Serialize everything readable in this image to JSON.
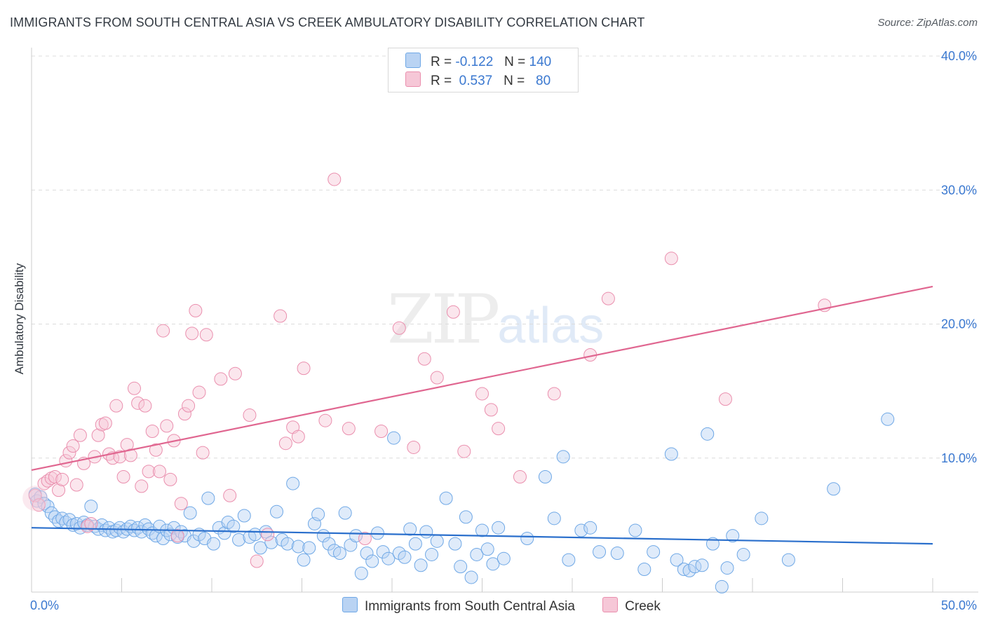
{
  "title": "IMMIGRANTS FROM SOUTH CENTRAL ASIA VS CREEK AMBULATORY DISABILITY CORRELATION CHART",
  "source": "Source: ZipAtlas.com",
  "watermark": {
    "zip": "ZIP",
    "atlas": "atlas"
  },
  "colors": {
    "blue": "#6fa8e6",
    "blue_fill": "#b9d3f3",
    "blue_line": "#2a6fcc",
    "pink": "#ea8fae",
    "pink_fill": "#f6c7d7",
    "pink_line": "#e06690",
    "axis_text": "#3a78d0"
  },
  "legend": {
    "r_label": "R =",
    "n_label": "N =",
    "rows": [
      {
        "r": "-0.122",
        "n": "140",
        "color": "#b9d3f3"
      },
      {
        "r": "0.537",
        "n": "80",
        "color": "#f6c7d7"
      }
    ]
  },
  "bottom_legend": [
    {
      "label": "Immigrants from South Central Asia",
      "color": "#b9d3f3"
    },
    {
      "label": "Creek",
      "color": "#f6c7d7"
    }
  ],
  "chart_data": {
    "type": "scatter",
    "title": "IMMIGRANTS FROM SOUTH CENTRAL ASIA VS CREEK AMBULATORY DISABILITY CORRELATION CHART",
    "xlabel": "",
    "ylabel": "Ambulatory Disability",
    "xlim": [
      0,
      50
    ],
    "ylim": [
      0,
      40
    ],
    "x_tick_labels": [
      "0.0%",
      "50.0%"
    ],
    "y_tick_labels": [
      "10.0%",
      "20.0%",
      "30.0%",
      "40.0%"
    ],
    "y_ticks": [
      10,
      20,
      30,
      40
    ],
    "grid": true,
    "legend_position": "top-center",
    "series": [
      {
        "name": "Immigrants from South Central Asia",
        "trend": {
          "x": [
            0,
            50
          ],
          "y": [
            4.8,
            3.6
          ]
        },
        "points": [
          [
            0.2,
            7.3
          ],
          [
            0.3,
            6.8
          ],
          [
            0.5,
            7.1
          ],
          [
            0.7,
            6.6
          ],
          [
            0.9,
            6.4
          ],
          [
            1.1,
            5.9
          ],
          [
            1.3,
            5.6
          ],
          [
            1.5,
            5.3
          ],
          [
            1.7,
            5.5
          ],
          [
            1.9,
            5.2
          ],
          [
            2.1,
            5.4
          ],
          [
            2.3,
            5.0
          ],
          [
            2.5,
            5.1
          ],
          [
            2.7,
            4.8
          ],
          [
            2.9,
            5.2
          ],
          [
            3.1,
            5.0
          ],
          [
            3.3,
            6.4
          ],
          [
            3.5,
            4.9
          ],
          [
            3.7,
            4.7
          ],
          [
            3.9,
            5.0
          ],
          [
            4.1,
            4.6
          ],
          [
            4.3,
            4.8
          ],
          [
            4.5,
            4.5
          ],
          [
            4.7,
            4.6
          ],
          [
            4.9,
            4.8
          ],
          [
            5.1,
            4.5
          ],
          [
            5.3,
            4.7
          ],
          [
            5.5,
            4.9
          ],
          [
            5.7,
            4.6
          ],
          [
            5.9,
            4.8
          ],
          [
            6.1,
            4.5
          ],
          [
            6.3,
            5.0
          ],
          [
            6.5,
            4.7
          ],
          [
            6.7,
            4.4
          ],
          [
            6.9,
            4.2
          ],
          [
            7.1,
            4.9
          ],
          [
            7.3,
            4.0
          ],
          [
            7.5,
            4.6
          ],
          [
            7.7,
            4.3
          ],
          [
            7.9,
            4.8
          ],
          [
            8.1,
            4.1
          ],
          [
            8.3,
            4.5
          ],
          [
            8.5,
            4.2
          ],
          [
            8.8,
            5.9
          ],
          [
            9.0,
            3.8
          ],
          [
            9.3,
            4.3
          ],
          [
            9.6,
            4.0
          ],
          [
            9.8,
            7.0
          ],
          [
            10.1,
            3.6
          ],
          [
            10.4,
            4.8
          ],
          [
            10.7,
            4.4
          ],
          [
            10.9,
            5.2
          ],
          [
            11.2,
            4.9
          ],
          [
            11.5,
            3.9
          ],
          [
            11.8,
            5.7
          ],
          [
            12.1,
            4.1
          ],
          [
            12.4,
            4.3
          ],
          [
            12.7,
            3.3
          ],
          [
            13.0,
            4.5
          ],
          [
            13.3,
            3.7
          ],
          [
            13.6,
            6.0
          ],
          [
            13.9,
            3.9
          ],
          [
            14.2,
            3.6
          ],
          [
            14.5,
            8.1
          ],
          [
            14.8,
            3.4
          ],
          [
            15.1,
            2.4
          ],
          [
            15.4,
            3.3
          ],
          [
            15.7,
            5.1
          ],
          [
            15.9,
            5.8
          ],
          [
            16.2,
            4.2
          ],
          [
            16.5,
            3.6
          ],
          [
            16.8,
            3.1
          ],
          [
            17.1,
            2.9
          ],
          [
            17.4,
            5.9
          ],
          [
            17.7,
            3.5
          ],
          [
            18.0,
            4.2
          ],
          [
            18.3,
            1.4
          ],
          [
            18.6,
            2.9
          ],
          [
            18.9,
            2.3
          ],
          [
            19.2,
            4.4
          ],
          [
            19.5,
            3.0
          ],
          [
            19.8,
            2.5
          ],
          [
            20.1,
            11.5
          ],
          [
            20.4,
            2.9
          ],
          [
            20.7,
            2.6
          ],
          [
            21.0,
            4.7
          ],
          [
            21.3,
            3.6
          ],
          [
            21.6,
            2.0
          ],
          [
            21.9,
            4.5
          ],
          [
            22.2,
            2.8
          ],
          [
            22.5,
            3.8
          ],
          [
            23.0,
            7.0
          ],
          [
            23.5,
            3.6
          ],
          [
            23.8,
            1.9
          ],
          [
            24.1,
            5.6
          ],
          [
            24.4,
            1.1
          ],
          [
            24.7,
            2.8
          ],
          [
            25.0,
            4.6
          ],
          [
            25.3,
            3.2
          ],
          [
            25.6,
            2.1
          ],
          [
            25.9,
            4.8
          ],
          [
            26.2,
            2.5
          ],
          [
            27.5,
            4.0
          ],
          [
            28.5,
            8.6
          ],
          [
            29.0,
            5.5
          ],
          [
            29.5,
            10.1
          ],
          [
            29.8,
            2.4
          ],
          [
            30.5,
            4.6
          ],
          [
            31.0,
            4.8
          ],
          [
            31.5,
            3.0
          ],
          [
            32.5,
            2.9
          ],
          [
            33.5,
            4.6
          ],
          [
            34.0,
            1.7
          ],
          [
            34.5,
            3.0
          ],
          [
            35.5,
            10.3
          ],
          [
            35.8,
            2.4
          ],
          [
            36.2,
            1.7
          ],
          [
            36.5,
            1.6
          ],
          [
            36.8,
            1.9
          ],
          [
            37.2,
            2.0
          ],
          [
            37.5,
            11.8
          ],
          [
            37.8,
            3.6
          ],
          [
            38.3,
            0.4
          ],
          [
            38.6,
            1.8
          ],
          [
            38.9,
            4.2
          ],
          [
            39.5,
            2.8
          ],
          [
            40.5,
            5.5
          ],
          [
            42.0,
            2.4
          ],
          [
            44.5,
            7.7
          ],
          [
            47.5,
            12.9
          ]
        ]
      },
      {
        "name": "Creek",
        "trend": {
          "x": [
            0,
            50
          ],
          "y": [
            9.1,
            22.8
          ]
        },
        "points": [
          [
            0.2,
            7.2
          ],
          [
            0.4,
            6.5
          ],
          [
            0.7,
            8.1
          ],
          [
            0.9,
            8.3
          ],
          [
            1.1,
            8.5
          ],
          [
            1.3,
            8.6
          ],
          [
            1.5,
            7.6
          ],
          [
            1.7,
            8.4
          ],
          [
            1.9,
            9.8
          ],
          [
            2.1,
            10.4
          ],
          [
            2.3,
            10.9
          ],
          [
            2.5,
            8.0
          ],
          [
            2.7,
            11.7
          ],
          [
            2.9,
            9.6
          ],
          [
            3.1,
            4.9
          ],
          [
            3.3,
            5.1
          ],
          [
            3.5,
            10.1
          ],
          [
            3.7,
            11.7
          ],
          [
            3.9,
            12.5
          ],
          [
            4.1,
            12.6
          ],
          [
            4.3,
            10.3
          ],
          [
            4.5,
            10.0
          ],
          [
            4.7,
            13.9
          ],
          [
            4.9,
            10.1
          ],
          [
            5.1,
            8.6
          ],
          [
            5.3,
            11.0
          ],
          [
            5.5,
            10.2
          ],
          [
            5.7,
            15.2
          ],
          [
            5.9,
            14.1
          ],
          [
            6.1,
            7.9
          ],
          [
            6.3,
            13.9
          ],
          [
            6.5,
            9.0
          ],
          [
            6.7,
            12.0
          ],
          [
            6.9,
            10.6
          ],
          [
            7.1,
            9.0
          ],
          [
            7.3,
            19.5
          ],
          [
            7.5,
            12.4
          ],
          [
            7.7,
            8.4
          ],
          [
            7.9,
            11.3
          ],
          [
            8.1,
            4.2
          ],
          [
            8.3,
            6.6
          ],
          [
            8.5,
            13.3
          ],
          [
            8.7,
            13.9
          ],
          [
            8.9,
            19.3
          ],
          [
            9.1,
            21.0
          ],
          [
            9.3,
            14.9
          ],
          [
            9.5,
            10.4
          ],
          [
            9.7,
            19.2
          ],
          [
            10.5,
            15.9
          ],
          [
            11.0,
            7.2
          ],
          [
            11.3,
            16.3
          ],
          [
            12.1,
            13.2
          ],
          [
            12.5,
            2.3
          ],
          [
            13.1,
            4.3
          ],
          [
            13.8,
            20.6
          ],
          [
            14.1,
            11.1
          ],
          [
            14.5,
            12.3
          ],
          [
            14.8,
            11.6
          ],
          [
            15.1,
            16.7
          ],
          [
            16.3,
            12.8
          ],
          [
            16.8,
            30.8
          ],
          [
            17.6,
            12.2
          ],
          [
            18.5,
            4.0
          ],
          [
            19.4,
            12.0
          ],
          [
            20.4,
            19.7
          ],
          [
            21.2,
            10.8
          ],
          [
            21.8,
            17.4
          ],
          [
            22.5,
            16.0
          ],
          [
            23.4,
            20.9
          ],
          [
            24.0,
            10.5
          ],
          [
            25.0,
            14.8
          ],
          [
            25.5,
            13.6
          ],
          [
            25.9,
            12.2
          ],
          [
            27.1,
            8.6
          ],
          [
            29.0,
            14.8
          ],
          [
            31.0,
            17.7
          ],
          [
            32.0,
            21.9
          ],
          [
            35.5,
            24.9
          ],
          [
            38.5,
            14.4
          ],
          [
            44.0,
            21.4
          ]
        ]
      }
    ]
  }
}
